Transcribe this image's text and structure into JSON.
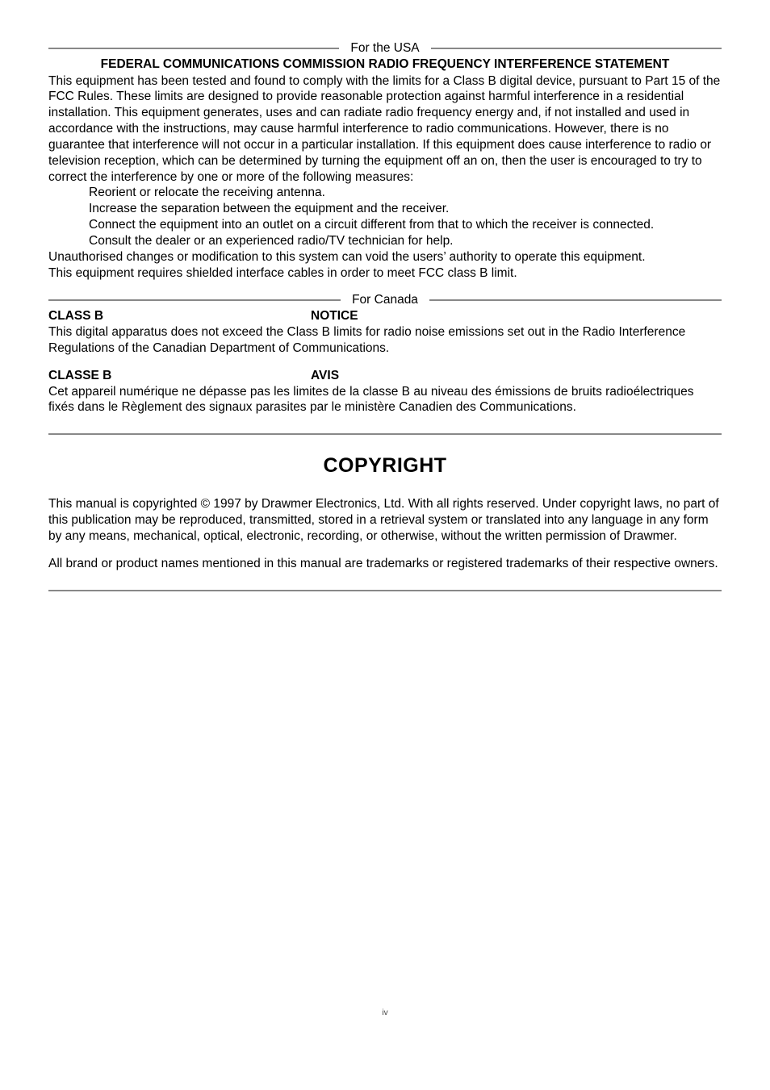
{
  "usa": {
    "label": "For the USA",
    "title": "FEDERAL COMMUNICATIONS COMMISSION RADIO FREQUENCY INTERFERENCE STATEMENT",
    "body": "This equipment has been tested and found to comply with the limits for a Class B digital device, pursuant to Part 15 of the FCC Rules. These limits are designed to provide reasonable protection against harmful interference in a residential installation. This equipment generates, uses and can radiate radio frequency energy and, if not installed and used in accordance with the instructions, may cause harmful interference to radio communications. However, there is no guarantee that interference will not occur in a particular installation. If this equipment does cause interference to radio or television reception, which can be determined by turning the equipment off an on, then the user is encouraged to try to correct the interference by one or more of the following measures:",
    "bullets": {
      "b1": "Reorient or relocate the receiving antenna.",
      "b2": "Increase the separation between the equipment and the receiver.",
      "b3": "Connect the equipment into an outlet on a circuit different from that to which the receiver is connected.",
      "b4": "Consult the dealer or an experienced radio/TV technician for help."
    },
    "tail1": "Unauthorised changes or modification to this system can void the users’ authority to operate this equipment.",
    "tail2": "This equipment requires shielded interface cables in order to meet FCC class B limit."
  },
  "canada": {
    "label": "For Canada",
    "classb_label": "CLASS B",
    "notice_label": "NOTICE",
    "notice_body": "This digital apparatus does not exceed the Class B limits for radio noise emissions set out in the Radio Interference Regulations of the Canadian Department of Communications.",
    "classeb_label": "CLASSE B",
    "avis_label": "AVIS",
    "avis_body": "Cet appareil numérique ne dépasse pas les limites de la classe B au niveau des émissions de bruits radioélectriques fixés dans le Règlement des signaux parasites par le ministère Canadien des Communications."
  },
  "copyright": {
    "heading": "COPYRIGHT",
    "p1": "This manual is copyrighted © 1997 by Drawmer Electronics, Ltd. With all rights reserved. Under copyright laws, no part of this publication may be reproduced, transmitted, stored in a retrieval system or translated into any language in any form by any means, mechanical, optical, electronic, recording, or otherwise, without the written permission of Drawmer.",
    "p2": "All brand or product names mentioned in this manual are trademarks or registered trademarks of their respective owners."
  },
  "page_number": "iv"
}
